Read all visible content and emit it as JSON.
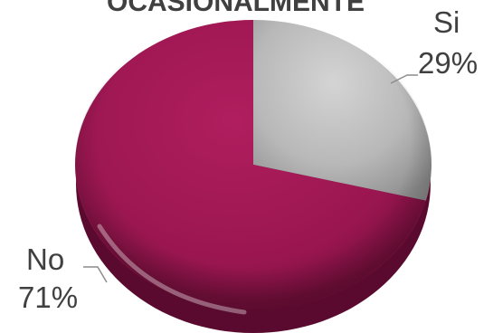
{
  "chart_data": {
    "type": "pie",
    "title": "OCASIONALMENTE",
    "categories": [
      "Si",
      "No"
    ],
    "values": [
      29,
      71
    ],
    "value_labels": [
      "29%",
      "71%"
    ],
    "colors": [
      "#b8b8b8",
      "#a01850"
    ],
    "legend": "none",
    "style": "3d-beveled"
  }
}
